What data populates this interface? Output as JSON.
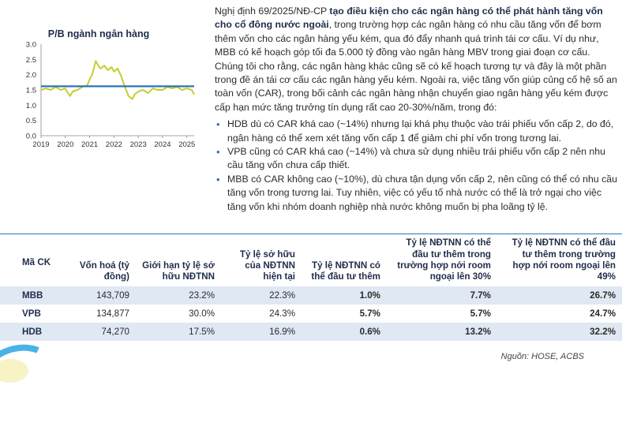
{
  "chart": {
    "title": "P/B ngành ngân hàng"
  },
  "chart_data": {
    "type": "line",
    "title": "P/B ngành ngân hàng",
    "ylim": [
      0,
      3.0
    ],
    "yticks": [
      "0.0",
      "0.5",
      "1.0",
      "1.5",
      "2.0",
      "2.5",
      "3.0"
    ],
    "xticks": [
      "2019",
      "2020",
      "2021",
      "2022",
      "2023",
      "2024",
      "2025"
    ],
    "series": [
      {
        "color": "#c9cc2c",
        "x": [
          2019.0,
          2019.2,
          2019.4,
          2019.6,
          2019.8,
          2020.0,
          2020.1,
          2020.2,
          2020.3,
          2020.5,
          2020.7,
          2020.9,
          2021.0,
          2021.1,
          2021.25,
          2021.35,
          2021.45,
          2021.6,
          2021.75,
          2021.9,
          2022.0,
          2022.15,
          2022.3,
          2022.4,
          2022.5,
          2022.6,
          2022.75,
          2022.85,
          2023.0,
          2023.2,
          2023.4,
          2023.6,
          2023.8,
          2024.0,
          2024.2,
          2024.4,
          2024.6,
          2024.8,
          2025.0,
          2025.2,
          2025.3
        ],
        "y": [
          1.5,
          1.55,
          1.5,
          1.6,
          1.5,
          1.55,
          1.4,
          1.3,
          1.45,
          1.5,
          1.6,
          1.65,
          1.85,
          2.0,
          2.45,
          2.3,
          2.2,
          2.3,
          2.15,
          2.25,
          2.1,
          2.2,
          1.95,
          1.7,
          1.5,
          1.3,
          1.2,
          1.35,
          1.45,
          1.5,
          1.4,
          1.55,
          1.5,
          1.5,
          1.6,
          1.55,
          1.6,
          1.5,
          1.55,
          1.5,
          1.35
        ]
      },
      {
        "color": "#2a74b8",
        "x": [
          2019.0,
          2025.3
        ],
        "y": [
          1.62,
          1.62
        ],
        "kind": "average"
      }
    ],
    "grid": false
  },
  "text": {
    "para1_lead": "Nghị định 69/2025/NĐ-CP ",
    "para1_bold": "tạo điều kiện cho các ngân hàng có thể phát hành tăng vốn cho cổ đông nước ngoài",
    "para1_rest": ", trong trường hợp các ngân hàng có nhu cầu tăng vốn để bơm thêm vốn cho các ngân hàng yếu kém, qua đó đẩy nhanh quá trình tái cơ cấu. Ví dụ như, MBB có kế hoạch góp tối đa 5.000 tỷ đồng vào ngân hàng MBV trong giai đoạn cơ cấu. Chúng tôi cho rằng, các ngân hàng khác cũng sẽ có kế hoạch tương tự và đây là một phần trong đề án tái cơ cấu các ngân hàng yếu kém. Ngoài ra, việc tăng vốn giúp củng cố hệ số an toàn vốn (CAR), trong bối cảnh các ngân hàng nhận chuyển giao ngân hàng yếu kém được cấp hạn mức tăng trưởng tín dụng rất cao 20-30%/năm, trong đó:",
    "bullets": [
      "HDB dù có CAR khá cao (~14%) nhưng lại khá phụ thuộc vào trái phiếu vốn cấp 2, do đó, ngân hàng có thể xem xét tăng vốn cấp 1 để giảm chi phí vốn trong tương lai.",
      "VPB cũng có CAR khá cao (~14%) và chưa sử dụng nhiều trái phiếu vốn cấp 2 nên nhu cầu tăng vốn chưa cấp thiết.",
      "MBB có CAR không cao (~10%), dù chưa tận dụng vốn cấp 2, nên cũng có thể có nhu cầu tăng vốn trong tương lai. Tuy nhiên, việc có yếu tố nhà nước có thể là trở ngại cho việc tăng vốn khi nhóm doanh nghiệp nhà nước không muốn bị pha loãng tỷ lệ."
    ]
  },
  "table": {
    "headers": [
      "Mã CK",
      "Vốn hoá (tỷ đồng)",
      "Giới hạn tỷ lệ sở hữu NĐTNN",
      "Tỷ lệ sở hữu của NĐTNN hiện tại",
      "Tỷ lệ NĐTNN có thể đầu tư thêm",
      "Tỷ lệ NĐTNN có thể đầu tư thêm trong trường hợp nới room ngoại lên 30%",
      "Tỷ lệ NĐTNN có thể đầu tư thêm trong trường hợp nới room ngoại lên 49%"
    ],
    "rows": [
      [
        "MBB",
        "143,709",
        "23.2%",
        "22.3%",
        "1.0%",
        "7.7%",
        "26.7%"
      ],
      [
        "VPB",
        "134,877",
        "30.0%",
        "24.3%",
        "5.7%",
        "5.7%",
        "24.7%"
      ],
      [
        "HDB",
        "74,270",
        "17.5%",
        "16.9%",
        "0.6%",
        "13.2%",
        "32.2%"
      ]
    ],
    "source": "Nguồn: HOSE, ACBS"
  }
}
